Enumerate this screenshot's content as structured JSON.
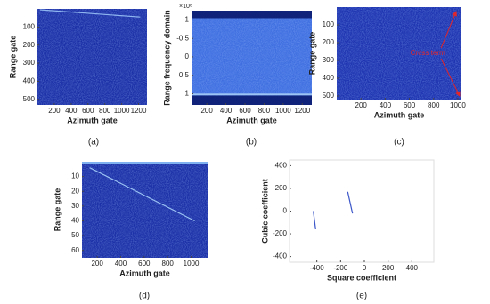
{
  "chart_data": [
    {
      "type": "heatmap",
      "caption": "(a)",
      "xlabel": "Azimuth gate",
      "ylabel": "Range gate",
      "background": "#1b2fa6",
      "y_reversed": true,
      "xlim": [
        0,
        1300
      ],
      "xticks": [
        200,
        400,
        600,
        800,
        1000,
        1200
      ],
      "ylim": [
        0,
        530
      ],
      "yticks": [
        100,
        200,
        300,
        400,
        500
      ],
      "series": [
        {
          "color": "#8fb6f0",
          "x": [
            30,
            1220
          ],
          "values": [
            5,
            45
          ]
        }
      ]
    },
    {
      "type": "heatmap",
      "caption": "(b)",
      "xlabel": "Azimuth gate",
      "ylabel": "Range frequency domain",
      "y_exponent_label": "×10⁸",
      "background": "#3f6ee0",
      "y_reversed": true,
      "xlim": [
        40,
        1300
      ],
      "xticks": [
        200,
        400,
        600,
        800,
        1000,
        1200
      ],
      "ylim": [
        -1.25,
        1.3
      ],
      "yticks": [
        -1,
        -0.5,
        0,
        0.5,
        1
      ]
    },
    {
      "type": "heatmap",
      "caption": "(c)",
      "xlabel": "Azimuth gate",
      "ylabel": "Range gate",
      "background": "#1d33b0",
      "y_reversed": true,
      "xlim": [
        0,
        1030
      ],
      "xticks": [
        200,
        400,
        600,
        800,
        1000
      ],
      "ylim": [
        0,
        520
      ],
      "yticks": [
        100,
        200,
        300,
        400,
        500
      ],
      "annotation": {
        "text": "Cross term",
        "color": "#e0262a"
      }
    },
    {
      "type": "heatmap",
      "caption": "(d)",
      "xlabel": "Azimuth gate",
      "ylabel": "Range gate",
      "background": "#1b2fa6",
      "y_reversed": true,
      "xlim": [
        70,
        1140
      ],
      "xticks": [
        200,
        400,
        600,
        800,
        1000
      ],
      "ylim": [
        0,
        65
      ],
      "yticks": [
        10,
        20,
        30,
        40,
        50,
        60
      ],
      "series": [
        {
          "color": "#9cc4f4",
          "x": [
            135,
            1030
          ],
          "values": [
            4,
            40
          ]
        }
      ]
    },
    {
      "type": "line",
      "caption": "(e)",
      "xlabel": "Square coefficient",
      "ylabel": "Cubic coefficient",
      "background": "#ffffff",
      "y_reversed": false,
      "xlim": [
        -630,
        585
      ],
      "xticks": [
        -400,
        -200,
        0,
        200,
        400
      ],
      "ylim": [
        -450,
        450
      ],
      "yticks": [
        -400,
        -200,
        0,
        200,
        400
      ],
      "series": [
        {
          "color": "#3a55c8",
          "x": [
            -430,
            -410
          ],
          "values": [
            0,
            -160
          ]
        },
        {
          "color": "#3a55c8",
          "x": [
            -140,
            -100
          ],
          "values": [
            170,
            -20
          ]
        }
      ]
    }
  ]
}
